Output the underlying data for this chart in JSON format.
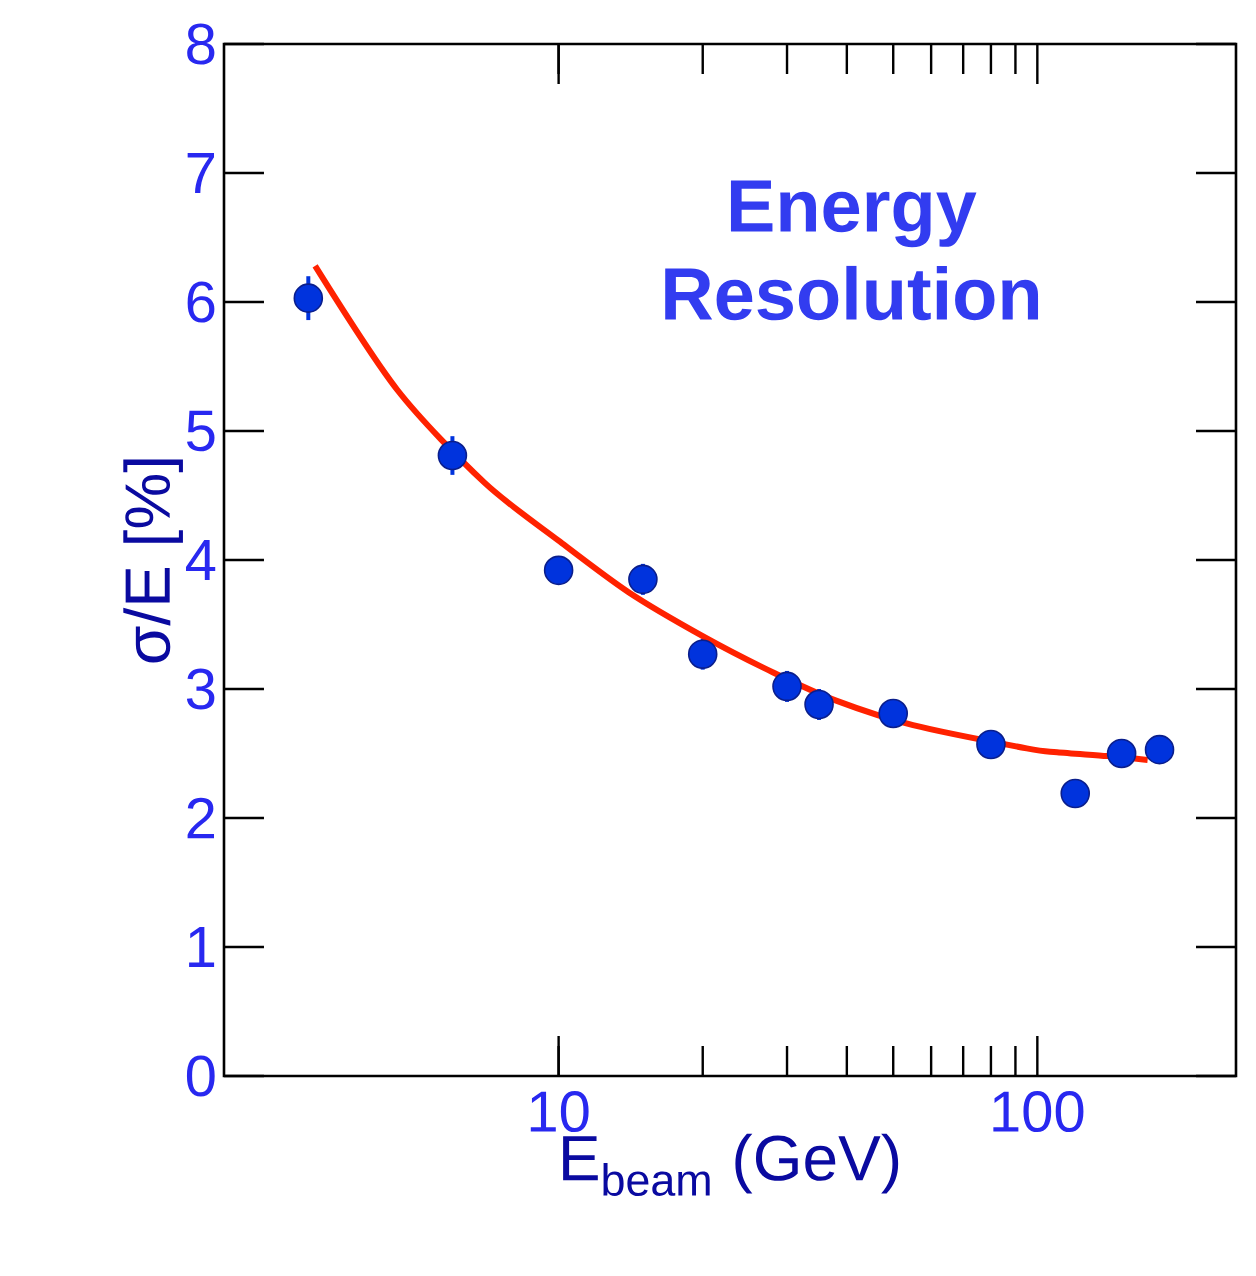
{
  "chart_data": {
    "type": "scatter",
    "xlabel": "E$_{beam}$ (GeV)",
    "ylabel": "σ/E [%]",
    "annotations": [
      "Energy Resolution"
    ],
    "log": "x",
    "xlim": [
      2,
      260
    ],
    "xticks": [
      10,
      100
    ],
    "ylim": [
      0,
      8
    ],
    "yticks": [
      0,
      1,
      2,
      3,
      4,
      5,
      6,
      7,
      8
    ],
    "grid": false,
    "series": [
      {
        "marker": "circle",
        "color": "#0033dd",
        "x": [
          3,
          6,
          10,
          15,
          20,
          30,
          35,
          50,
          80,
          120,
          150,
          180
        ],
        "values": [
          6.03,
          4.81,
          3.92,
          3.85,
          3.27,
          3.02,
          2.88,
          2.81,
          2.57,
          2.19,
          2.5,
          2.53
        ],
        "errors": [
          0.17,
          0.15,
          0.1,
          0.12,
          0.12,
          0.12,
          0.12,
          null,
          null,
          null,
          null,
          null
        ]
      },
      {
        "type": "line",
        "marker": "none",
        "color": "#ff2200",
        "x": [
          3.1,
          4.6,
          7,
          10,
          14,
          20,
          28,
          38,
          55,
          95,
          110,
          140,
          170
        ],
        "values": [
          6.28,
          5.32,
          4.6,
          4.15,
          3.75,
          3.41,
          3.13,
          2.91,
          2.72,
          2.54,
          2.51,
          2.48,
          2.45
        ]
      }
    ]
  }
}
